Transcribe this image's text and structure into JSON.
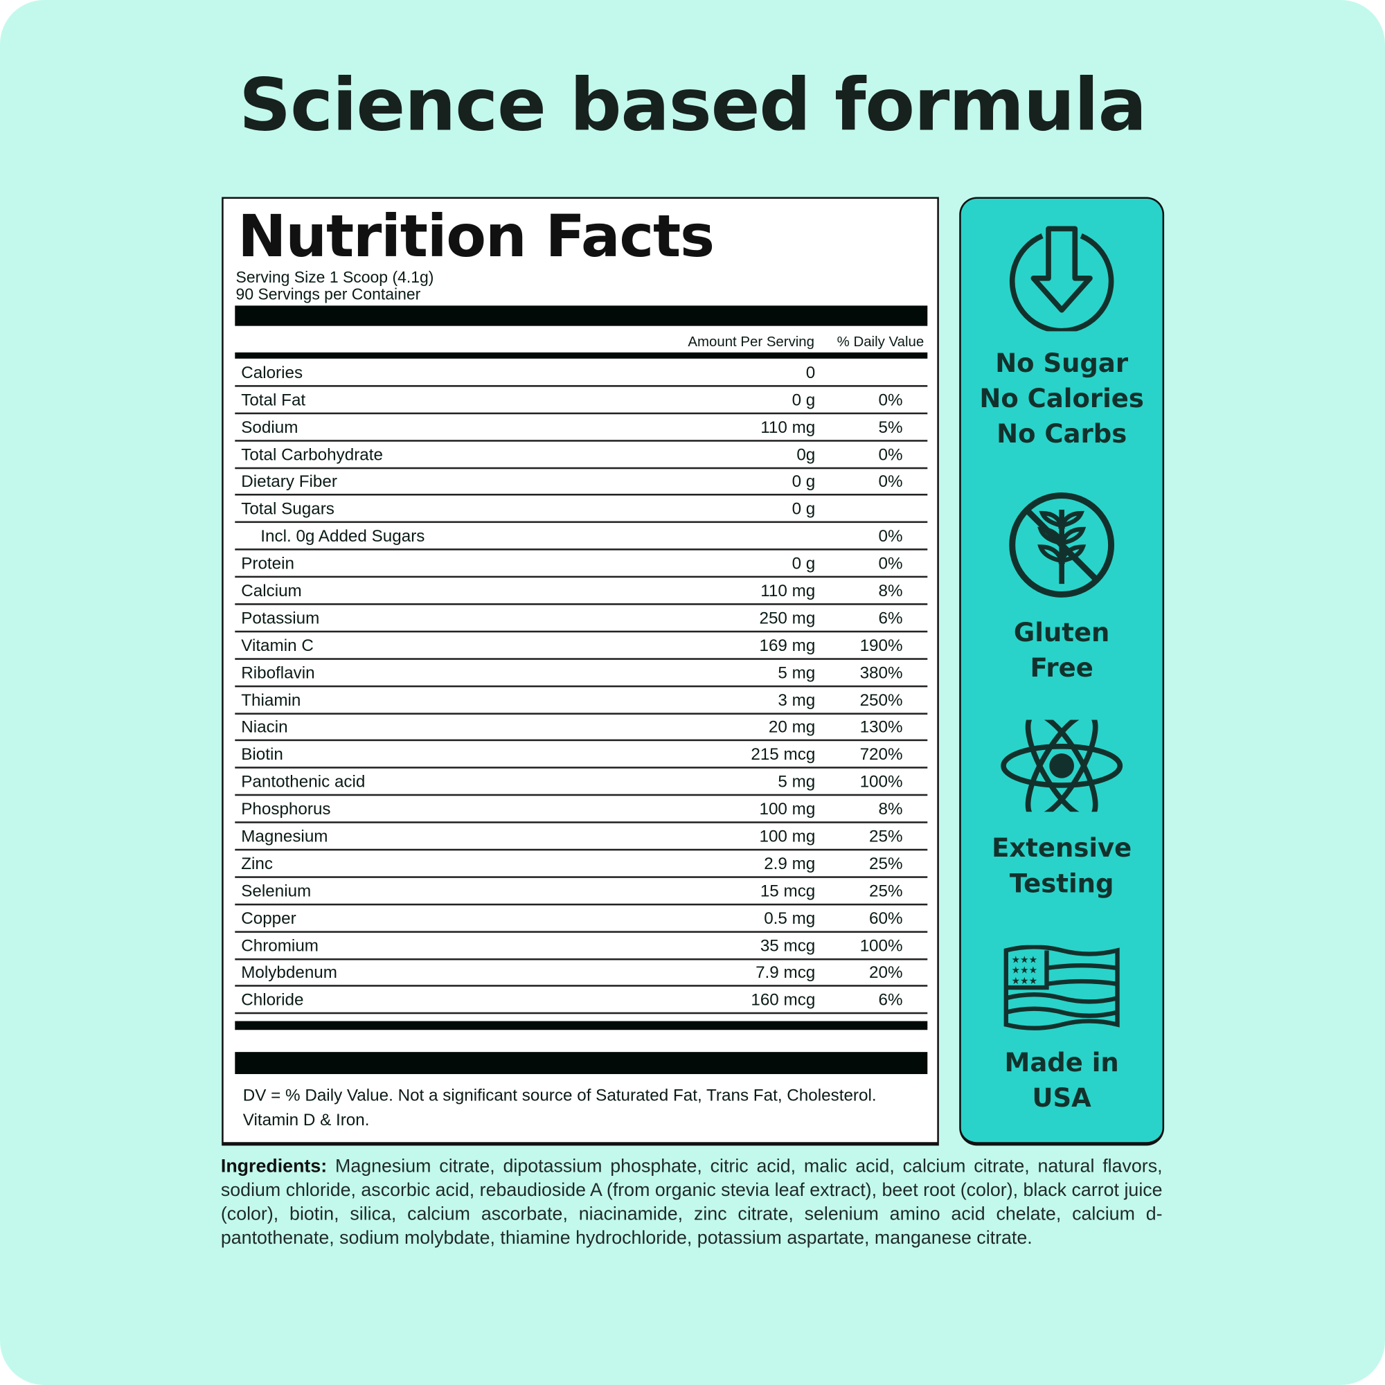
{
  "title": "Science based formula",
  "nutrition": {
    "title": "Nutrition Facts",
    "serving_size": "Serving Size 1 Scoop (4.1g)",
    "servings": "90 Servings per Container",
    "col_amount": "Amount Per Serving",
    "col_dv": "% Daily Value",
    "rows": [
      {
        "label": "Calories",
        "amount": "0",
        "dv": ""
      },
      {
        "label": "Total Fat",
        "amount": "0 g",
        "dv": "0%"
      },
      {
        "label": "Sodium",
        "amount": "110 mg",
        "dv": "5%"
      },
      {
        "label": "Total Carbohydrate",
        "amount": "0g",
        "dv": "0%"
      },
      {
        "label": "Dietary Fiber",
        "amount": "0 g",
        "dv": "0%"
      },
      {
        "label": "Total Sugars",
        "amount": "0 g",
        "dv": ""
      },
      {
        "label": "Incl. 0g Added Sugars",
        "amount": "",
        "dv": "0%",
        "sub": true
      },
      {
        "label": "Protein",
        "amount": "0 g",
        "dv": "0%"
      },
      {
        "label": "Calcium",
        "amount": "110 mg",
        "dv": "8%"
      },
      {
        "label": "Potassium",
        "amount": "250 mg",
        "dv": "6%"
      },
      {
        "label": "Vitamin C",
        "amount": "169 mg",
        "dv": "190%"
      },
      {
        "label": "Riboflavin",
        "amount": "5 mg",
        "dv": "380%"
      },
      {
        "label": "Thiamin",
        "amount": "3 mg",
        "dv": "250%"
      },
      {
        "label": "Niacin",
        "amount": "20 mg",
        "dv": "130%"
      },
      {
        "label": "Biotin",
        "amount": "215 mcg",
        "dv": "720%"
      },
      {
        "label": "Pantothenic acid",
        "amount": "5 mg",
        "dv": "100%"
      },
      {
        "label": "Phosphorus",
        "amount": "100 mg",
        "dv": "8%"
      },
      {
        "label": "Magnesium",
        "amount": "100 mg",
        "dv": "25%"
      },
      {
        "label": "Zinc",
        "amount": "2.9 mg",
        "dv": "25%"
      },
      {
        "label": "Selenium",
        "amount": "15 mcg",
        "dv": "25%"
      },
      {
        "label": "Copper",
        "amount": "0.5 mg",
        "dv": "60%"
      },
      {
        "label": "Chromium",
        "amount": "35 mcg",
        "dv": "100%"
      },
      {
        "label": "Molybdenum",
        "amount": "7.9 mcg",
        "dv": "20%"
      },
      {
        "label": "Chloride",
        "amount": "160 mcg",
        "dv": "6%"
      }
    ],
    "footnote": "DV = % Daily Value. Not a significant source of Saturated Fat, Trans Fat, Cholesterol. Vitamin D & Iron."
  },
  "features": [
    {
      "icon": "arrow-down-circle-icon",
      "lines": [
        "No Sugar",
        "No Calories",
        "No Carbs"
      ]
    },
    {
      "icon": "no-wheat-icon",
      "lines": [
        "Gluten",
        "Free"
      ]
    },
    {
      "icon": "atom-icon",
      "lines": [
        "Extensive",
        "Testing"
      ]
    },
    {
      "icon": "us-flag-icon",
      "lines": [
        "Made in",
        "USA"
      ]
    }
  ],
  "ingredients": {
    "label": "Ingredients:",
    "text": "Magnesium citrate, dipotassium phosphate, citric acid, malic acid, calcium citrate, natural flavors, sodium chloride, ascorbic acid, rebaudioside A (from organic stevia leaf extract), beet root (color), black carrot juice (color), biotin, silica, calcium ascorbate, niacinamide, zinc citrate, selenium amino acid chelate, calcium d-pantothenate, sodium molybdate, thiamine hydrochloride, potassium aspartate, manganese citrate."
  },
  "colors": {
    "background": "#c3f9ec",
    "panel": "#2ad3c9",
    "ink": "#111111"
  }
}
